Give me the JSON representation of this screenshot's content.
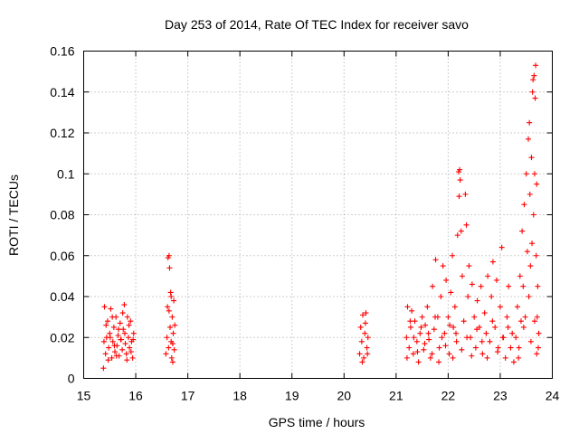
{
  "chart_data": {
    "type": "scatter",
    "title": "Day 253 of 2014, Rate Of TEC Index for receiver savo",
    "xlabel": "GPS time / hours",
    "ylabel": "ROTI / TECUs",
    "xlim": [
      15,
      24
    ],
    "ylim": [
      0,
      0.16
    ],
    "x_ticks": [
      15,
      16,
      17,
      18,
      19,
      20,
      21,
      22,
      23,
      24
    ],
    "x_tick_labels": [
      "15",
      "16",
      "17",
      "18",
      "19",
      "20",
      "21",
      "22",
      "23",
      "24"
    ],
    "y_ticks": [
      0,
      0.02,
      0.04,
      0.06,
      0.08,
      0.1,
      0.12,
      0.14,
      0.16
    ],
    "y_tick_labels": [
      "0",
      "0.02",
      "0.04",
      "0.06",
      "0.08",
      "0.1",
      "0.12",
      "0.14",
      "0.16"
    ],
    "grid": true,
    "marker": "+",
    "series": [
      {
        "name": "ROTI",
        "color": "#ff0000",
        "points": [
          [
            15.38,
            0.005
          ],
          [
            15.4,
            0.035
          ],
          [
            15.42,
            0.012
          ],
          [
            15.44,
            0.02
          ],
          [
            15.46,
            0.028
          ],
          [
            15.48,
            0.015
          ],
          [
            15.5,
            0.022
          ],
          [
            15.52,
            0.034
          ],
          [
            15.54,
            0.01
          ],
          [
            15.56,
            0.018
          ],
          [
            15.58,
            0.025
          ],
          [
            15.6,
            0.013
          ],
          [
            15.62,
            0.03
          ],
          [
            15.64,
            0.016
          ],
          [
            15.66,
            0.021
          ],
          [
            15.68,
            0.011
          ],
          [
            15.7,
            0.027
          ],
          [
            15.72,
            0.019
          ],
          [
            15.74,
            0.014
          ],
          [
            15.76,
            0.024
          ],
          [
            15.78,
            0.036
          ],
          [
            15.8,
            0.017
          ],
          [
            15.82,
            0.012
          ],
          [
            15.84,
            0.03
          ],
          [
            15.86,
            0.02
          ],
          [
            15.88,
            0.015
          ],
          [
            15.9,
            0.028
          ],
          [
            15.92,
            0.018
          ],
          [
            15.94,
            0.01
          ],
          [
            15.96,
            0.022
          ],
          [
            15.39,
            0.018
          ],
          [
            15.43,
            0.026
          ],
          [
            15.47,
            0.009
          ],
          [
            15.51,
            0.02
          ],
          [
            15.55,
            0.03
          ],
          [
            15.59,
            0.016
          ],
          [
            15.63,
            0.011
          ],
          [
            15.67,
            0.024
          ],
          [
            15.71,
            0.019
          ],
          [
            15.75,
            0.032
          ],
          [
            15.79,
            0.022
          ],
          [
            15.83,
            0.009
          ],
          [
            15.87,
            0.026
          ],
          [
            15.91,
            0.013
          ],
          [
            15.95,
            0.019
          ],
          [
            16.58,
            0.012
          ],
          [
            16.6,
            0.02
          ],
          [
            16.61,
            0.035
          ],
          [
            16.62,
            0.059
          ],
          [
            16.63,
            0.015
          ],
          [
            16.64,
            0.06
          ],
          [
            16.65,
            0.054
          ],
          [
            16.66,
            0.025
          ],
          [
            16.67,
            0.042
          ],
          [
            16.68,
            0.018
          ],
          [
            16.69,
            0.01
          ],
          [
            16.7,
            0.03
          ],
          [
            16.71,
            0.008
          ],
          [
            16.72,
            0.022
          ],
          [
            16.73,
            0.038
          ],
          [
            16.74,
            0.014
          ],
          [
            16.75,
            0.026
          ],
          [
            16.64,
            0.033
          ],
          [
            16.68,
            0.04
          ],
          [
            16.71,
            0.017
          ],
          [
            20.3,
            0.012
          ],
          [
            20.32,
            0.025
          ],
          [
            20.34,
            0.018
          ],
          [
            20.36,
            0.031
          ],
          [
            20.38,
            0.01
          ],
          [
            20.4,
            0.022
          ],
          [
            20.42,
            0.032
          ],
          [
            20.44,
            0.015
          ],
          [
            20.46,
            0.02
          ],
          [
            20.35,
            0.008
          ],
          [
            20.41,
            0.027
          ],
          [
            20.45,
            0.012
          ],
          [
            21.2,
            0.02
          ],
          [
            21.22,
            0.035
          ],
          [
            21.25,
            0.015
          ],
          [
            21.28,
            0.025
          ],
          [
            21.3,
            0.033
          ],
          [
            21.33,
            0.012
          ],
          [
            21.36,
            0.028
          ],
          [
            21.4,
            0.018
          ],
          [
            21.43,
            0.008
          ],
          [
            21.46,
            0.022
          ],
          [
            21.5,
            0.03
          ],
          [
            21.53,
            0.014
          ],
          [
            21.56,
            0.026
          ],
          [
            21.6,
            0.035
          ],
          [
            21.63,
            0.019
          ],
          [
            21.66,
            0.01
          ],
          [
            21.7,
            0.045
          ],
          [
            21.73,
            0.024
          ],
          [
            21.76,
            0.058
          ],
          [
            21.8,
            0.03
          ],
          [
            21.83,
            0.015
          ],
          [
            21.86,
            0.04
          ],
          [
            21.9,
            0.055
          ],
          [
            21.93,
            0.022
          ],
          [
            21.96,
            0.048
          ],
          [
            22.0,
            0.03
          ],
          [
            22.02,
            0.012
          ],
          [
            22.05,
            0.042
          ],
          [
            22.08,
            0.06
          ],
          [
            22.1,
            0.025
          ],
          [
            22.13,
            0.035
          ],
          [
            22.16,
            0.018
          ],
          [
            22.18,
            0.07
          ],
          [
            22.2,
            0.101
          ],
          [
            22.21,
            0.089
          ],
          [
            22.22,
            0.102
          ],
          [
            22.23,
            0.097
          ],
          [
            22.25,
            0.072
          ],
          [
            22.27,
            0.05
          ],
          [
            22.3,
            0.028
          ],
          [
            22.33,
            0.09
          ],
          [
            22.35,
            0.075
          ],
          [
            22.38,
            0.04
          ],
          [
            22.4,
            0.055
          ],
          [
            22.43,
            0.02
          ],
          [
            22.46,
            0.046
          ],
          [
            22.5,
            0.03
          ],
          [
            22.53,
            0.015
          ],
          [
            22.56,
            0.038
          ],
          [
            22.6,
            0.025
          ],
          [
            22.63,
            0.045
          ],
          [
            22.66,
            0.012
          ],
          [
            22.7,
            0.032
          ],
          [
            22.73,
            0.022
          ],
          [
            22.76,
            0.05
          ],
          [
            22.8,
            0.018
          ],
          [
            22.83,
            0.04
          ],
          [
            22.86,
            0.057
          ],
          [
            22.9,
            0.025
          ],
          [
            22.93,
            0.048
          ],
          [
            22.96,
            0.015
          ],
          [
            23.0,
            0.035
          ],
          [
            23.03,
            0.064
          ],
          [
            23.06,
            0.02
          ],
          [
            23.1,
            0.01
          ],
          [
            23.13,
            0.03
          ],
          [
            23.16,
            0.045
          ],
          [
            23.2,
            0.015
          ],
          [
            23.23,
            0.022
          ],
          [
            23.26,
            0.008
          ],
          [
            21.21,
            0.01
          ],
          [
            21.27,
            0.028
          ],
          [
            21.34,
            0.02
          ],
          [
            21.41,
            0.013
          ],
          [
            21.48,
            0.025
          ],
          [
            21.55,
            0.017
          ],
          [
            21.62,
            0.022
          ],
          [
            21.69,
            0.012
          ],
          [
            21.75,
            0.03
          ],
          [
            21.82,
            0.008
          ],
          [
            21.88,
            0.02
          ],
          [
            21.95,
            0.016
          ],
          [
            22.03,
            0.026
          ],
          [
            22.09,
            0.01
          ],
          [
            22.15,
            0.022
          ],
          [
            22.26,
            0.014
          ],
          [
            22.36,
            0.02
          ],
          [
            22.45,
            0.011
          ],
          [
            22.55,
            0.024
          ],
          [
            22.65,
            0.018
          ],
          [
            22.75,
            0.01
          ],
          [
            22.85,
            0.028
          ],
          [
            22.95,
            0.013
          ],
          [
            23.05,
            0.02
          ],
          [
            23.15,
            0.025
          ],
          [
            23.3,
            0.02
          ],
          [
            23.33,
            0.035
          ],
          [
            23.36,
            0.015
          ],
          [
            23.38,
            0.05
          ],
          [
            23.4,
            0.028
          ],
          [
            23.42,
            0.072
          ],
          [
            23.44,
            0.045
          ],
          [
            23.46,
            0.085
          ],
          [
            23.48,
            0.03
          ],
          [
            23.5,
            0.1
          ],
          [
            23.52,
            0.062
          ],
          [
            23.54,
            0.117
          ],
          [
            23.56,
            0.125
          ],
          [
            23.57,
            0.09
          ],
          [
            23.58,
            0.055
          ],
          [
            23.6,
            0.108
          ],
          [
            23.61,
            0.066
          ],
          [
            23.62,
            0.14
          ],
          [
            23.63,
            0.146
          ],
          [
            23.64,
            0.08
          ],
          [
            23.65,
            0.148
          ],
          [
            23.66,
            0.1
          ],
          [
            23.67,
            0.137
          ],
          [
            23.68,
            0.153
          ],
          [
            23.69,
            0.06
          ],
          [
            23.7,
            0.095
          ],
          [
            23.71,
            0.03
          ],
          [
            23.72,
            0.045
          ],
          [
            23.73,
            0.015
          ],
          [
            23.74,
            0.022
          ],
          [
            23.35,
            0.01
          ],
          [
            23.45,
            0.025
          ],
          [
            23.55,
            0.04
          ],
          [
            23.59,
            0.018
          ],
          [
            23.66,
            0.028
          ],
          [
            23.7,
            0.012
          ]
        ]
      }
    ]
  }
}
